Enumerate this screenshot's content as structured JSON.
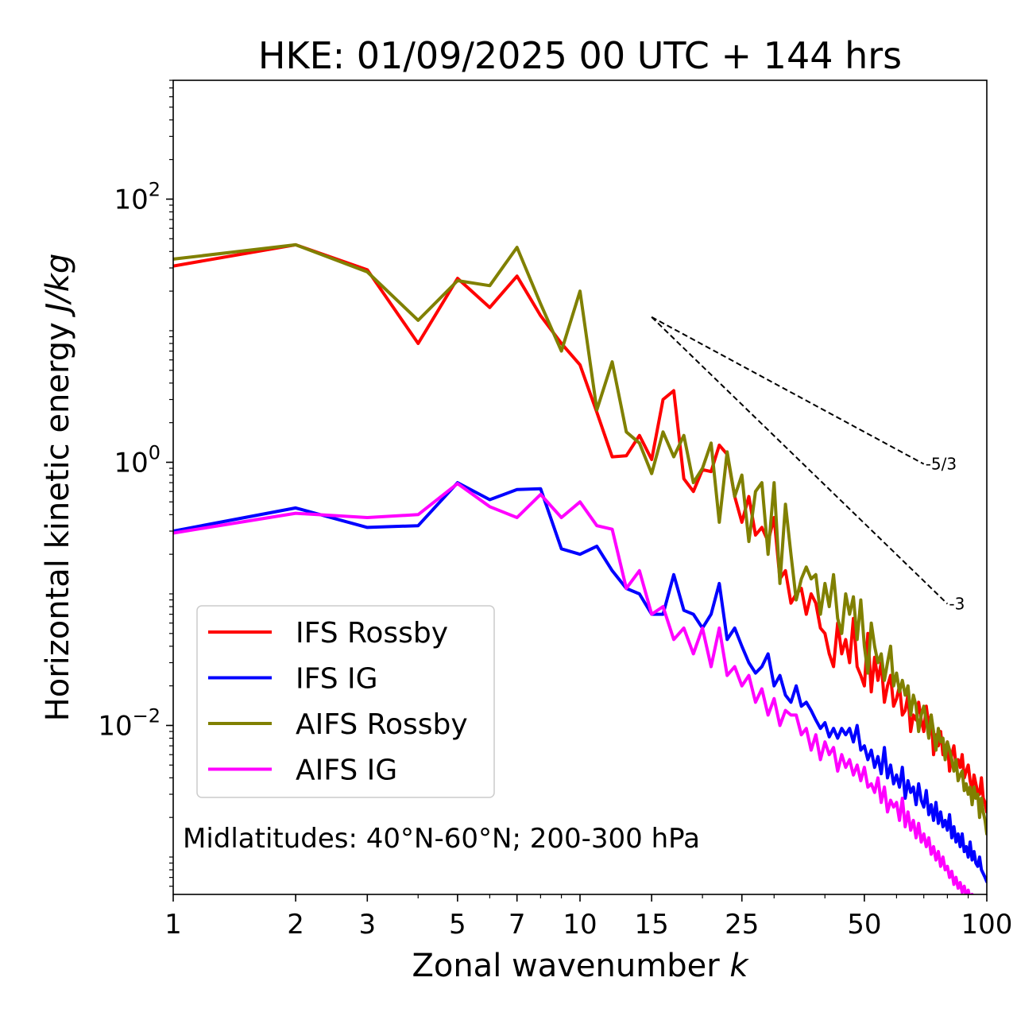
{
  "chart_data": {
    "type": "line",
    "title": "HKE: 01/09/2025 00 UTC + 144 hrs",
    "xlabel": "Zonal wavenumber",
    "xlabel_var": "k",
    "ylabel": "Horizontal kinetic energy",
    "ylabel_unit": "J/kg",
    "xscale": "log",
    "yscale": "log",
    "xlim": [
      1,
      100
    ],
    "ylim": [
      0.00052,
      800
    ],
    "x_ticks": [
      {
        "value": 1,
        "label": "1"
      },
      {
        "value": 2,
        "label": "2"
      },
      {
        "value": 3,
        "label": "3"
      },
      {
        "value": 5,
        "label": "5"
      },
      {
        "value": 7,
        "label": "7"
      },
      {
        "value": 10,
        "label": "10"
      },
      {
        "value": 15,
        "label": "15"
      },
      {
        "value": 25,
        "label": "25"
      },
      {
        "value": 50,
        "label": "50"
      },
      {
        "value": 100,
        "label": "100"
      }
    ],
    "y_ticks": [
      {
        "value": 100,
        "base": "10",
        "exp": "2"
      },
      {
        "value": 1,
        "base": "10",
        "exp": "0"
      },
      {
        "value": 0.01,
        "base": "10",
        "exp": "−2"
      }
    ],
    "annotation": "Midlatitudes: 40°N-60°N; 200-300 hPa",
    "legend_position": "lower-left",
    "reference_lines": [
      {
        "label": "-5/3",
        "k": [
          15,
          70
        ],
        "y": [
          12.7,
          0.97
        ]
      },
      {
        "label": "-3",
        "k": [
          15,
          80
        ],
        "y": [
          12.7,
          0.084
        ]
      }
    ],
    "series": [
      {
        "name": "IFS Rossby",
        "color": "#ff0000",
        "x": [
          1,
          2,
          3,
          4,
          5,
          6,
          7,
          8,
          9,
          10,
          11,
          12,
          13,
          14,
          15,
          16,
          17,
          18,
          19,
          20,
          21,
          22,
          23,
          24,
          25,
          26,
          27,
          28,
          29,
          30,
          31,
          32,
          33,
          34,
          35,
          36,
          37,
          38,
          39,
          40,
          41,
          42,
          43,
          44,
          45,
          46,
          47,
          48,
          49,
          50,
          51,
          52,
          53,
          54,
          55,
          56,
          57,
          58,
          59,
          60,
          61,
          62,
          63,
          64,
          65,
          66,
          67,
          68,
          69,
          70,
          71,
          72,
          73,
          74,
          75,
          76,
          77,
          78,
          79,
          80,
          81,
          82,
          83,
          84,
          85,
          86,
          87,
          88,
          89,
          90,
          91,
          92,
          93,
          94,
          95,
          96,
          97,
          98,
          99,
          100
        ],
        "values": [
          31,
          45,
          29,
          8,
          25,
          15,
          26,
          13,
          8,
          5.5,
          2.4,
          1.1,
          1.12,
          1.6,
          1.05,
          3.0,
          3.5,
          0.75,
          0.6,
          0.88,
          0.85,
          1.35,
          1.15,
          0.55,
          0.35,
          0.55,
          0.28,
          0.32,
          0.25,
          0.38,
          0.13,
          0.15,
          0.085,
          0.1,
          0.11,
          0.07,
          0.1,
          0.085,
          0.055,
          0.05,
          0.035,
          0.028,
          0.06,
          0.035,
          0.045,
          0.03,
          0.065,
          0.028,
          0.024,
          0.02,
          0.05,
          0.018,
          0.033,
          0.022,
          0.03,
          0.015,
          0.02,
          0.024,
          0.014,
          0.016,
          0.02,
          0.012,
          0.013,
          0.017,
          0.009,
          0.012,
          0.011,
          0.015,
          0.011,
          0.009,
          0.014,
          0.01,
          0.012,
          0.006,
          0.0085,
          0.007,
          0.009,
          0.006,
          0.0065,
          0.0075,
          0.0045,
          0.006,
          0.007,
          0.005,
          0.0055,
          0.0048,
          0.006,
          0.004,
          0.0045,
          0.005,
          0.0038,
          0.0032,
          0.0042,
          0.0036,
          0.0031,
          0.003,
          0.004,
          0.0028,
          0.0026,
          0.0022
        ]
      },
      {
        "name": "IFS IG",
        "color": "#0000ff",
        "x": [
          1,
          2,
          3,
          4,
          5,
          6,
          7,
          8,
          9,
          10,
          11,
          12,
          13,
          14,
          15,
          16,
          17,
          18,
          19,
          20,
          21,
          22,
          23,
          24,
          25,
          26,
          27,
          28,
          29,
          30,
          31,
          32,
          33,
          34,
          35,
          36,
          37,
          38,
          39,
          40,
          41,
          42,
          43,
          44,
          45,
          46,
          47,
          48,
          49,
          50,
          51,
          52,
          53,
          54,
          55,
          56,
          57,
          58,
          59,
          60,
          61,
          62,
          63,
          64,
          65,
          66,
          67,
          68,
          69,
          70,
          71,
          72,
          73,
          74,
          75,
          76,
          77,
          78,
          79,
          80,
          81,
          82,
          83,
          84,
          85,
          86,
          87,
          88,
          89,
          90,
          91,
          92,
          93,
          94,
          95,
          96,
          97,
          98,
          99,
          100
        ],
        "values": [
          0.3,
          0.45,
          0.32,
          0.33,
          0.7,
          0.52,
          0.62,
          0.63,
          0.22,
          0.2,
          0.23,
          0.15,
          0.11,
          0.1,
          0.07,
          0.07,
          0.14,
          0.075,
          0.07,
          0.055,
          0.07,
          0.12,
          0.045,
          0.055,
          0.04,
          0.03,
          0.025,
          0.028,
          0.035,
          0.02,
          0.024,
          0.017,
          0.015,
          0.02,
          0.014,
          0.015,
          0.013,
          0.011,
          0.0095,
          0.0105,
          0.0082,
          0.0095,
          0.008,
          0.0095,
          0.0085,
          0.0095,
          0.0075,
          0.01,
          0.0065,
          0.007,
          0.0055,
          0.0065,
          0.0048,
          0.0058,
          0.0043,
          0.0068,
          0.004,
          0.005,
          0.0036,
          0.0042,
          0.0034,
          0.0048,
          0.0028,
          0.0038,
          0.0031,
          0.0034,
          0.0025,
          0.0036,
          0.0027,
          0.0024,
          0.0032,
          0.0021,
          0.0025,
          0.0019,
          0.0026,
          0.0018,
          0.0022,
          0.0017,
          0.0019,
          0.0016,
          0.0021,
          0.0014,
          0.0017,
          0.0013,
          0.0015,
          0.0012,
          0.0015,
          0.0011,
          0.0012,
          0.001,
          0.0013,
          0.00095,
          0.0011,
          0.0009,
          0.00085,
          0.001,
          0.0008,
          0.00075,
          0.0007,
          0.00065
        ]
      },
      {
        "name": "AIFS Rossby",
        "color": "#808000",
        "x": [
          1,
          2,
          3,
          4,
          5,
          6,
          7,
          8,
          9,
          10,
          11,
          12,
          13,
          14,
          15,
          16,
          17,
          18,
          19,
          20,
          21,
          22,
          23,
          24,
          25,
          26,
          27,
          28,
          29,
          30,
          31,
          32,
          33,
          34,
          35,
          36,
          37,
          38,
          39,
          40,
          41,
          42,
          43,
          44,
          45,
          46,
          47,
          48,
          49,
          50,
          51,
          52,
          53,
          54,
          55,
          56,
          57,
          58,
          59,
          60,
          61,
          62,
          63,
          64,
          65,
          66,
          67,
          68,
          69,
          70,
          71,
          72,
          73,
          74,
          75,
          76,
          77,
          78,
          79,
          80,
          81,
          82,
          83,
          84,
          85,
          86,
          87,
          88,
          89,
          90,
          91,
          92,
          93,
          94,
          95,
          96,
          97,
          98,
          99,
          100
        ],
        "values": [
          35,
          45,
          28,
          12,
          24,
          22,
          43,
          16,
          7,
          20,
          2.5,
          5.8,
          1.7,
          1.4,
          0.82,
          1.7,
          1.1,
          1.6,
          0.7,
          0.9,
          1.4,
          0.35,
          1.2,
          0.55,
          0.8,
          0.25,
          0.6,
          0.7,
          0.2,
          0.7,
          0.12,
          0.48,
          0.2,
          0.09,
          0.13,
          0.16,
          0.13,
          0.14,
          0.07,
          0.12,
          0.08,
          0.14,
          0.065,
          0.05,
          0.1,
          0.07,
          0.095,
          0.045,
          0.09,
          0.04,
          0.025,
          0.06,
          0.04,
          0.03,
          0.035,
          0.022,
          0.03,
          0.04,
          0.02,
          0.025,
          0.018,
          0.022,
          0.017,
          0.02,
          0.012,
          0.017,
          0.014,
          0.009,
          0.012,
          0.014,
          0.011,
          0.008,
          0.012,
          0.009,
          0.0065,
          0.0095,
          0.0075,
          0.008,
          0.0055,
          0.0075,
          0.0065,
          0.0055,
          0.0045,
          0.0055,
          0.0038,
          0.0042,
          0.0045,
          0.0032,
          0.0036,
          0.003,
          0.0034,
          0.0025,
          0.0034,
          0.0028,
          0.003,
          0.002,
          0.0028,
          0.0022,
          0.0019,
          0.0015
        ]
      },
      {
        "name": "AIFS IG",
        "color": "#ff00ff",
        "x": [
          1,
          2,
          3,
          4,
          5,
          6,
          7,
          8,
          9,
          10,
          11,
          12,
          13,
          14,
          15,
          16,
          17,
          18,
          19,
          20,
          21,
          22,
          23,
          24,
          25,
          26,
          27,
          28,
          29,
          30,
          31,
          32,
          33,
          34,
          35,
          36,
          37,
          38,
          39,
          40,
          41,
          42,
          43,
          44,
          45,
          46,
          47,
          48,
          49,
          50,
          51,
          52,
          53,
          54,
          55,
          56,
          57,
          58,
          59,
          60,
          61,
          62,
          63,
          64,
          65,
          66,
          67,
          68,
          69,
          70,
          71,
          72,
          73,
          74,
          75,
          76,
          77,
          78,
          79,
          80,
          81,
          82,
          83,
          84,
          85,
          86,
          87,
          88,
          89,
          90,
          91,
          92,
          93,
          94,
          95,
          96,
          97,
          98,
          99,
          100
        ],
        "values": [
          0.29,
          0.41,
          0.38,
          0.4,
          0.69,
          0.46,
          0.38,
          0.57,
          0.38,
          0.5,
          0.33,
          0.31,
          0.11,
          0.15,
          0.07,
          0.08,
          0.045,
          0.055,
          0.035,
          0.055,
          0.028,
          0.055,
          0.024,
          0.028,
          0.02,
          0.024,
          0.015,
          0.019,
          0.012,
          0.016,
          0.01,
          0.013,
          0.012,
          0.012,
          0.0085,
          0.0095,
          0.0065,
          0.0085,
          0.0055,
          0.0075,
          0.006,
          0.0068,
          0.0045,
          0.006,
          0.0048,
          0.0055,
          0.0042,
          0.005,
          0.0038,
          0.0048,
          0.0034,
          0.0036,
          0.0031,
          0.004,
          0.0026,
          0.0034,
          0.0022,
          0.0027,
          0.0024,
          0.0026,
          0.0019,
          0.0028,
          0.0017,
          0.0022,
          0.0016,
          0.0019,
          0.0014,
          0.0018,
          0.0013,
          0.0015,
          0.0012,
          0.0014,
          0.00105,
          0.0012,
          0.00095,
          0.0011,
          0.00085,
          0.001,
          0.0008,
          0.00085,
          0.0007,
          0.00078,
          0.00062,
          0.0007,
          0.00058,
          0.00064,
          0.00054,
          0.0006,
          0.0005,
          0.00056,
          0.00048,
          0.00052,
          0.00046,
          0.0005,
          0.00044,
          0.00046,
          0.00042,
          0.00044,
          0.0004,
          0.00038
        ]
      }
    ]
  }
}
